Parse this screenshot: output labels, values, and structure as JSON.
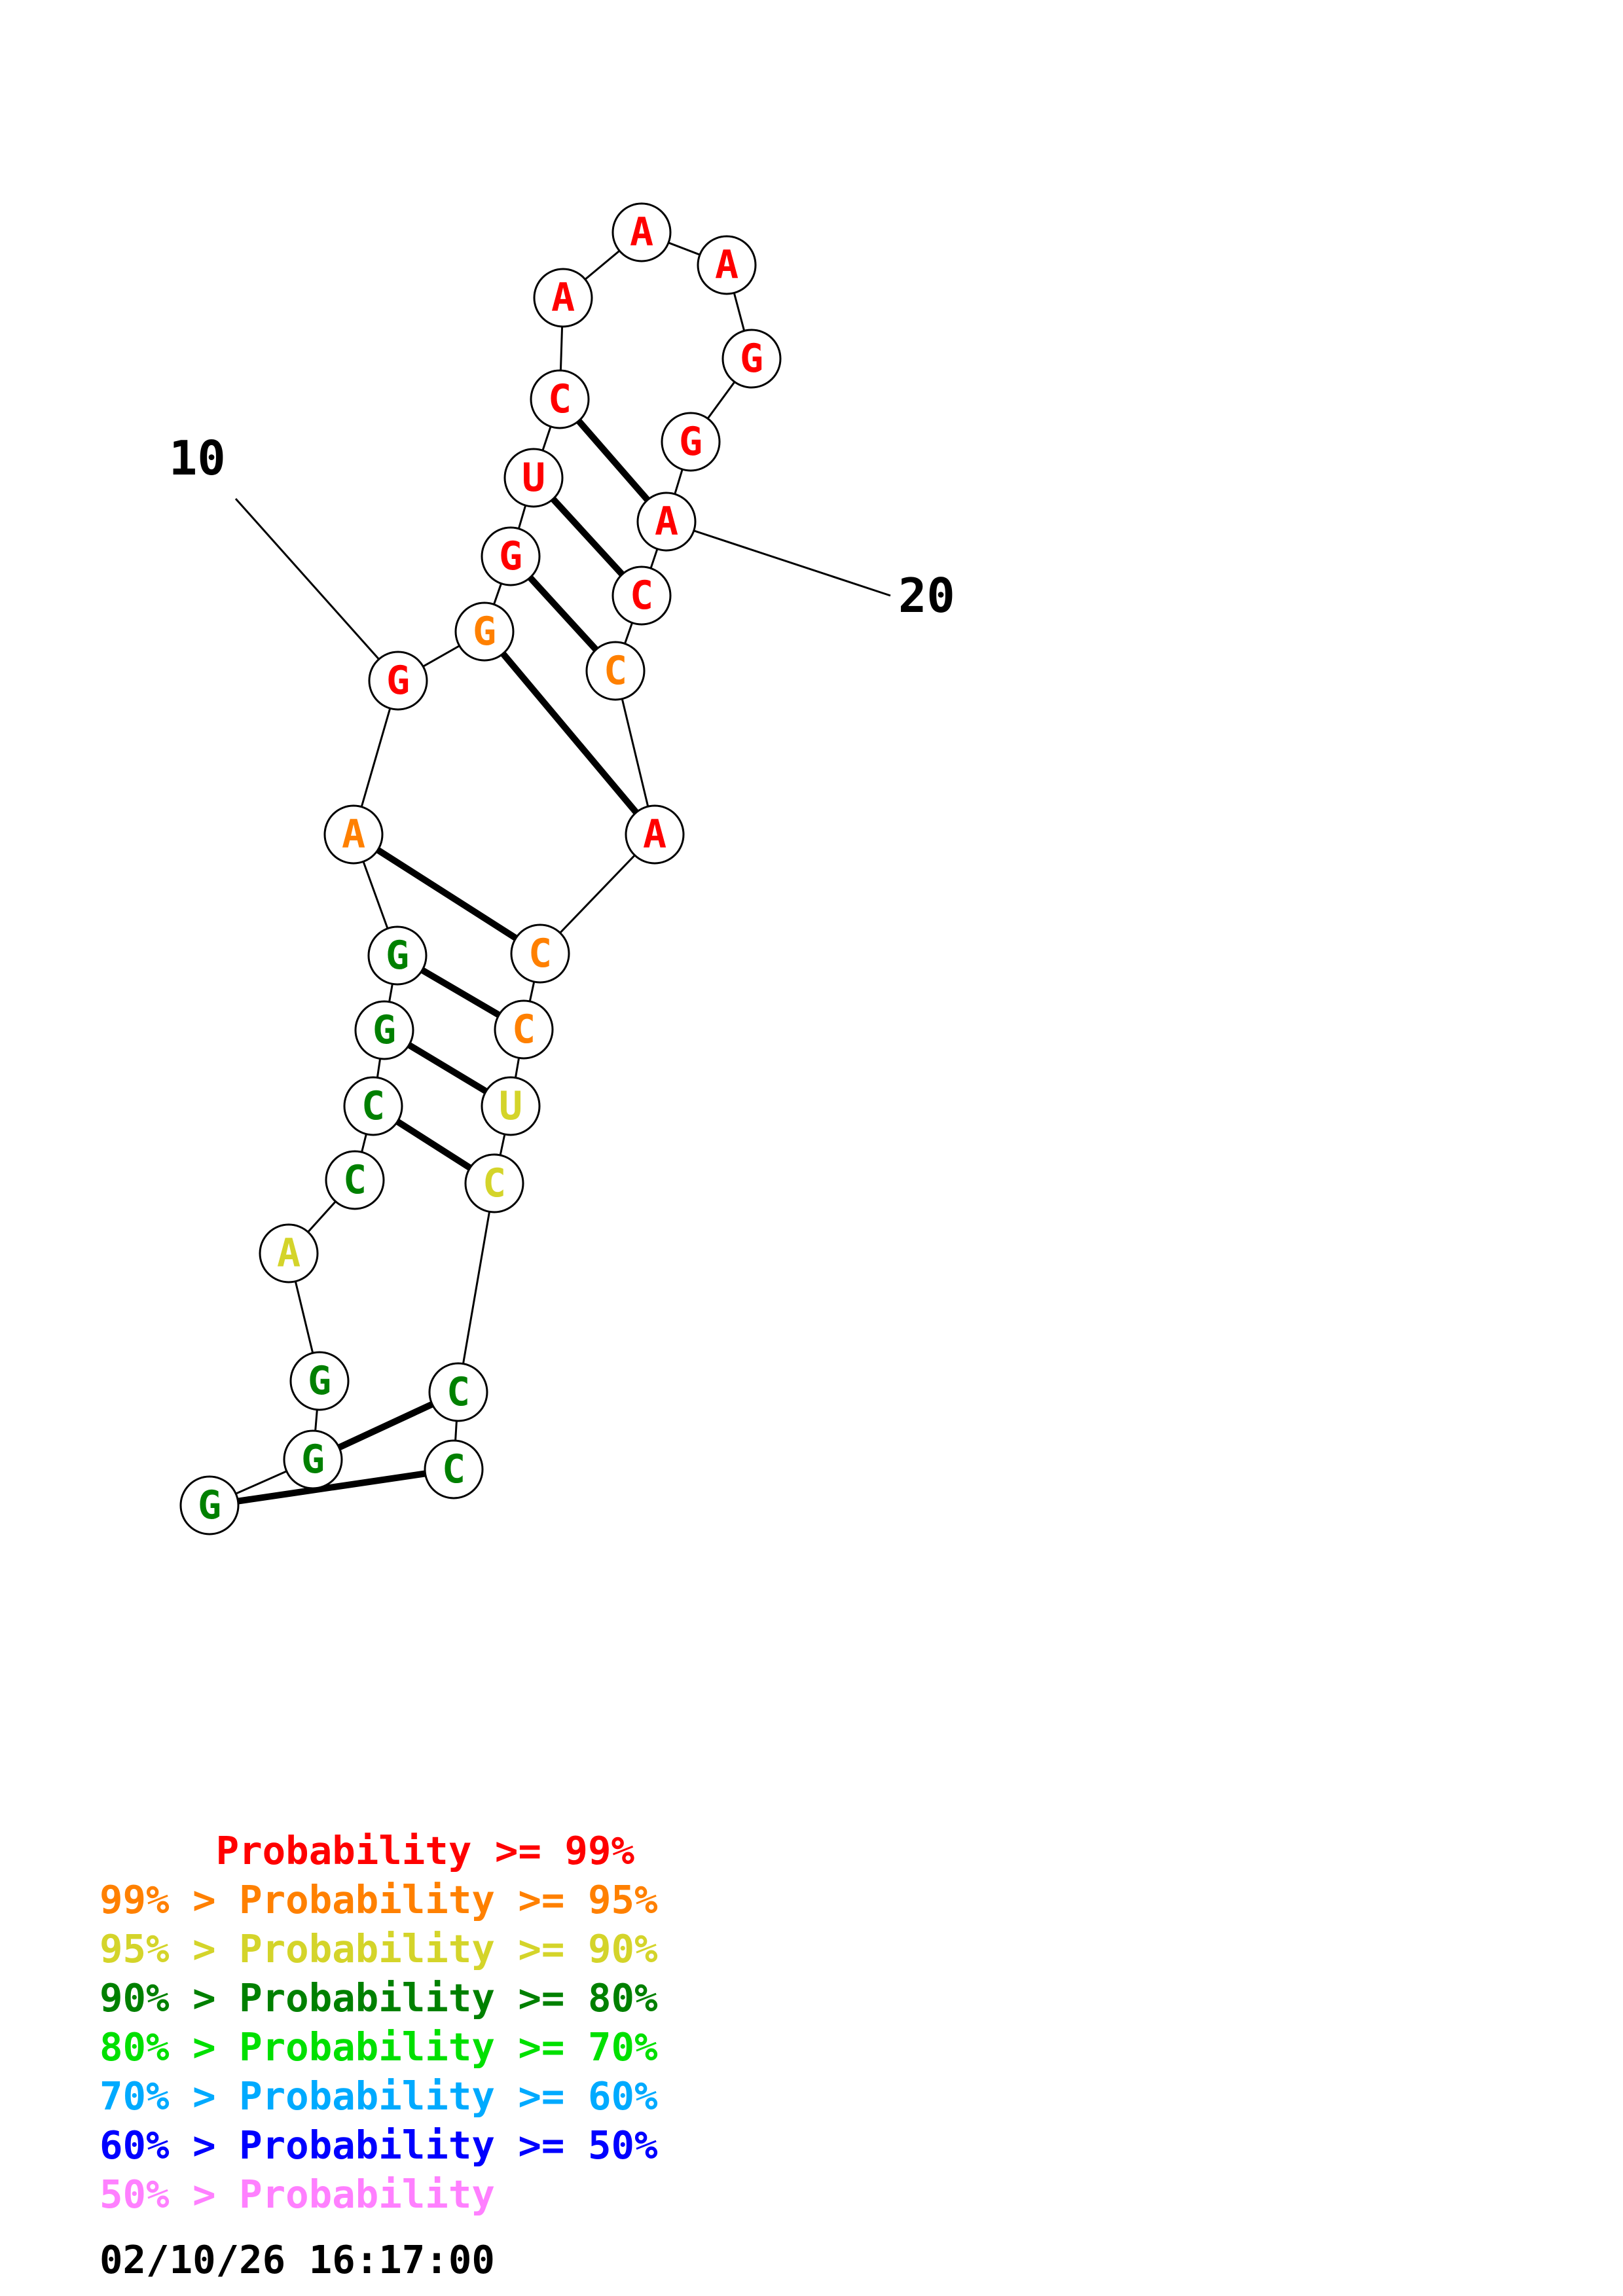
{
  "diagram": {
    "sequence": [
      "G",
      "G",
      "G",
      "A",
      "C",
      "C",
      "G",
      "G",
      "A",
      "G",
      "G",
      "G",
      "U",
      "C",
      "A",
      "A",
      "A",
      "G",
      "G",
      "A",
      "C",
      "C",
      "A",
      "C",
      "C",
      "U",
      "C",
      "C",
      "C"
    ],
    "probability_class": [
      3,
      3,
      3,
      2,
      3,
      3,
      3,
      3,
      1,
      0,
      1,
      0,
      0,
      0,
      0,
      0,
      0,
      0,
      0,
      0,
      0,
      1,
      0,
      1,
      1,
      2,
      2,
      3,
      3
    ],
    "pairs": [
      [
        1,
        29
      ],
      [
        2,
        28
      ],
      [
        6,
        27
      ],
      [
        7,
        26
      ],
      [
        8,
        25
      ],
      [
        9,
        24
      ],
      [
        11,
        23
      ],
      [
        12,
        22
      ],
      [
        13,
        21
      ],
      [
        14,
        20
      ]
    ],
    "number_labels": [
      {
        "index": 10,
        "text": "10"
      },
      {
        "index": 20,
        "text": "20"
      }
    ],
    "colors": [
      "#ff0000",
      "#ff8000",
      "#d4d42a",
      "#008000",
      "#00e000",
      "#00aaff",
      "#0000ff",
      "#ff80ff"
    ]
  },
  "legend": [
    {
      "text": "     Probability >= 99%",
      "color": "#ff0000"
    },
    {
      "text": "99% > Probability >= 95%",
      "color": "#ff8000"
    },
    {
      "text": "95% > Probability >= 90%",
      "color": "#d4d42a"
    },
    {
      "text": "90% > Probability >= 80%",
      "color": "#008000"
    },
    {
      "text": "80% > Probability >= 70%",
      "color": "#00e000"
    },
    {
      "text": "70% > Probability >= 60%",
      "color": "#00aaff"
    },
    {
      "text": "60% > Probability >= 50%",
      "color": "#0000ff"
    },
    {
      "text": "50% > Probability",
      "color": "#ff80ff"
    }
  ],
  "timestamp": "02/10/26 16:17:00"
}
